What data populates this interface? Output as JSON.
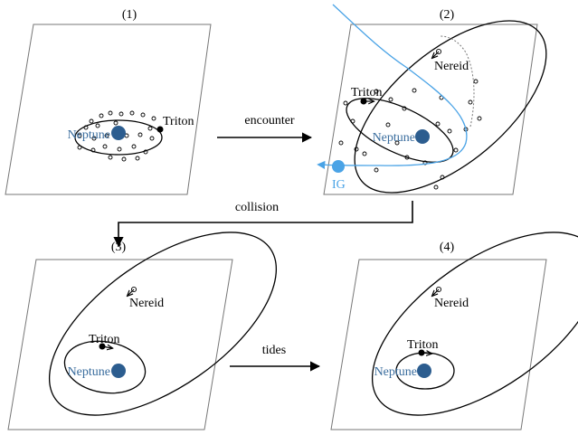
{
  "panels": [
    {
      "number": "(1)",
      "neptune_label": "Neptune",
      "triton_label": "Triton"
    },
    {
      "number": "(2)",
      "neptune_label": "Neptune",
      "triton_label": "Triton",
      "nereid_label": "Nereid",
      "ig_label": "IG"
    },
    {
      "number": "(3)",
      "neptune_label": "Neptune",
      "triton_label": "Triton",
      "nereid_label": "Nereid"
    },
    {
      "number": "(4)",
      "neptune_label": "Neptune",
      "triton_label": "Triton",
      "nereid_label": "Nereid"
    }
  ],
  "transitions": {
    "encounter": "encounter",
    "collision": "collision",
    "tides": "tides"
  },
  "colors": {
    "neptune": "#2c5d8f",
    "neptune_label": "#3a6d9e",
    "ig": "#4aa3e6",
    "orbit": "#000000",
    "plane": "#777777"
  }
}
